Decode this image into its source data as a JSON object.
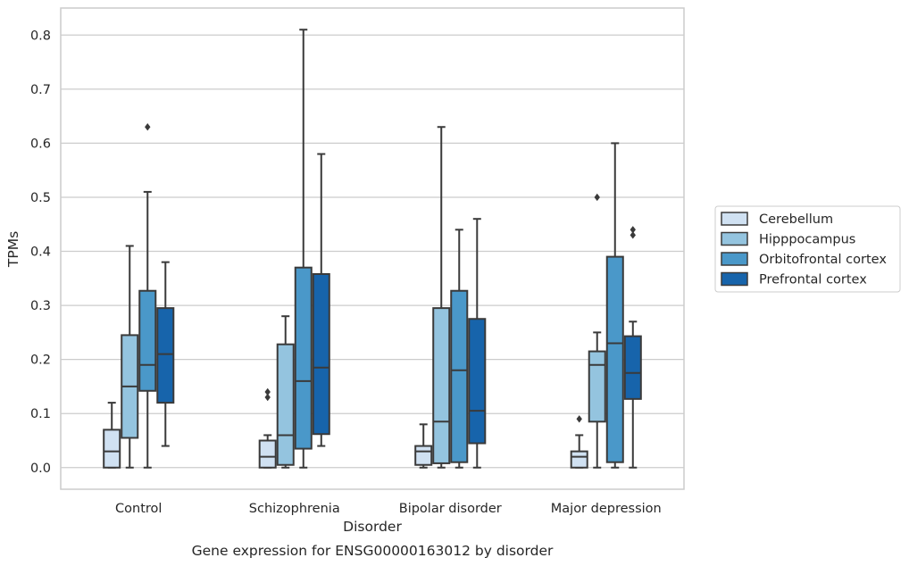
{
  "chart_data": {
    "type": "box",
    "title": "",
    "caption": "Gene expression for ENSG00000163012 by disorder",
    "xlabel": "Disorder",
    "ylabel": "TPMs",
    "ylim": [
      -0.04,
      0.85
    ],
    "yticks": [
      "0.0",
      "0.1",
      "0.2",
      "0.3",
      "0.4",
      "0.5",
      "0.6",
      "0.7",
      "0.8"
    ],
    "grid": "horizontal",
    "legend_position": "right",
    "categories": [
      "Control",
      "Schizophrenia",
      "Bipolar disorder",
      "Major depression"
    ],
    "series": [
      {
        "name": "Cerebellum",
        "color": "#d0e1f2",
        "boxes": [
          {
            "whislo": 0.0,
            "q1": 0.0,
            "med": 0.03,
            "q3": 0.07,
            "whishi": 0.12,
            "fliers": []
          },
          {
            "whislo": 0.0,
            "q1": 0.0,
            "med": 0.02,
            "q3": 0.05,
            "whishi": 0.06,
            "fliers": [
              0.13,
              0.14
            ]
          },
          {
            "whislo": 0.0,
            "q1": 0.005,
            "med": 0.03,
            "q3": 0.04,
            "whishi": 0.08,
            "fliers": []
          },
          {
            "whislo": 0.0,
            "q1": 0.0,
            "med": 0.02,
            "q3": 0.03,
            "whishi": 0.06,
            "fliers": [
              0.09
            ]
          }
        ]
      },
      {
        "name": "Hipppocampus",
        "color": "#94c4df",
        "boxes": [
          {
            "whislo": 0.0,
            "q1": 0.055,
            "med": 0.15,
            "q3": 0.245,
            "whishi": 0.41,
            "fliers": []
          },
          {
            "whislo": 0.0,
            "q1": 0.005,
            "med": 0.06,
            "q3": 0.228,
            "whishi": 0.28,
            "fliers": []
          },
          {
            "whislo": 0.0,
            "q1": 0.008,
            "med": 0.085,
            "q3": 0.295,
            "whishi": 0.63,
            "fliers": []
          },
          {
            "whislo": 0.0,
            "q1": 0.085,
            "med": 0.19,
            "q3": 0.215,
            "whishi": 0.25,
            "fliers": [
              0.5
            ]
          }
        ]
      },
      {
        "name": "Orbitofrontal cortex",
        "color": "#4a98c9",
        "boxes": [
          {
            "whislo": 0.0,
            "q1": 0.142,
            "med": 0.19,
            "q3": 0.327,
            "whishi": 0.51,
            "fliers": [
              0.63
            ]
          },
          {
            "whislo": 0.0,
            "q1": 0.035,
            "med": 0.16,
            "q3": 0.37,
            "whishi": 0.81,
            "fliers": []
          },
          {
            "whislo": 0.0,
            "q1": 0.01,
            "med": 0.18,
            "q3": 0.327,
            "whishi": 0.44,
            "fliers": []
          },
          {
            "whislo": 0.0,
            "q1": 0.01,
            "med": 0.23,
            "q3": 0.39,
            "whishi": 0.6,
            "fliers": []
          }
        ]
      },
      {
        "name": "Prefrontal cortex",
        "color": "#1764ab",
        "boxes": [
          {
            "whislo": 0.04,
            "q1": 0.12,
            "med": 0.21,
            "q3": 0.295,
            "whishi": 0.38,
            "fliers": []
          },
          {
            "whislo": 0.04,
            "q1": 0.062,
            "med": 0.185,
            "q3": 0.358,
            "whishi": 0.58,
            "fliers": []
          },
          {
            "whislo": 0.0,
            "q1": 0.045,
            "med": 0.105,
            "q3": 0.275,
            "whishi": 0.46,
            "fliers": []
          },
          {
            "whislo": 0.0,
            "q1": 0.127,
            "med": 0.175,
            "q3": 0.243,
            "whishi": 0.27,
            "fliers": [
              0.43,
              0.44
            ]
          }
        ]
      }
    ]
  }
}
